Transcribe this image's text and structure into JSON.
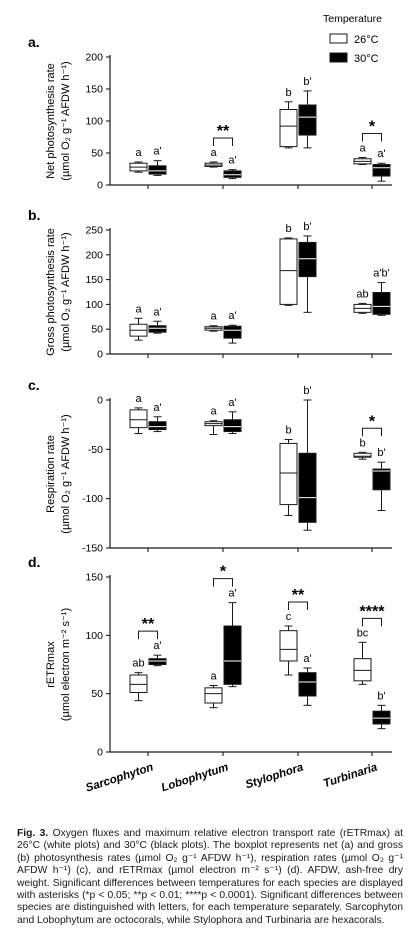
{
  "legend": {
    "title": "Temperature",
    "items": [
      {
        "label": "26°C",
        "fill": "#ffffff"
      },
      {
        "label": "30°C",
        "fill": "#000000"
      }
    ]
  },
  "colors": {
    "box_26": "#ffffff",
    "box_30": "#000000",
    "stroke": "#1a1a1a"
  },
  "categories": [
    "Sarcophyton",
    "Lobophytum",
    "Stylophora",
    "Turbinaria"
  ],
  "chart_data": [
    {
      "type": "box",
      "panel_label": "a.",
      "ylabel": [
        "Net photosynthesis rate",
        "(µmol O₂ g⁻¹ AFDW h⁻¹)"
      ],
      "ylim": [
        0,
        200
      ],
      "yticks": [
        0,
        50,
        100,
        150,
        200
      ],
      "categories": [
        "Sarcophyton",
        "Lobophytum",
        "Stylophora",
        "Turbinaria"
      ],
      "series": [
        {
          "name": "26°C",
          "boxes": [
            {
              "min": 20,
              "q1": 22,
              "median": 28,
              "q3": 34,
              "max": 36
            },
            {
              "min": 28,
              "q1": 29,
              "median": 31,
              "q3": 34,
              "max": 36
            },
            {
              "min": 58,
              "q1": 60,
              "median": 92,
              "q3": 118,
              "max": 130
            },
            {
              "min": 32,
              "q1": 33,
              "median": 37,
              "q3": 41,
              "max": 43
            }
          ]
        },
        {
          "name": "30°C",
          "boxes": [
            {
              "min": 15,
              "q1": 17,
              "median": 22,
              "q3": 30,
              "max": 38
            },
            {
              "min": 10,
              "q1": 12,
              "median": 16,
              "q3": 22,
              "max": 24
            },
            {
              "min": 58,
              "q1": 78,
              "median": 106,
              "q3": 125,
              "max": 147
            },
            {
              "min": 6,
              "q1": 14,
              "median": 27,
              "q3": 32,
              "max": 34
            }
          ]
        }
      ],
      "letters": [
        [
          "a",
          "a'"
        ],
        [
          "a",
          "a'"
        ],
        [
          "b",
          "b'"
        ],
        [
          "a",
          "a'"
        ]
      ],
      "significance": [
        {
          "category": 1,
          "text": "**"
        },
        {
          "category": 3,
          "text": "*"
        }
      ]
    },
    {
      "type": "box",
      "panel_label": "b.",
      "ylabel": [
        "Gross photosynthesis rate",
        "(µmol O₂ g⁻¹ AFDW h⁻¹)"
      ],
      "ylim": [
        0,
        250
      ],
      "yticks": [
        0,
        50,
        100,
        150,
        200,
        250
      ],
      "categories": [
        "Sarcophyton",
        "Lobophytum",
        "Stylophora",
        "Turbinaria"
      ],
      "series": [
        {
          "name": "26°C",
          "boxes": [
            {
              "min": 28,
              "q1": 36,
              "median": 48,
              "q3": 60,
              "max": 72
            },
            {
              "min": 46,
              "q1": 48,
              "median": 52,
              "q3": 55,
              "max": 57
            },
            {
              "min": 98,
              "q1": 100,
              "median": 168,
              "q3": 232,
              "max": 234
            },
            {
              "min": 82,
              "q1": 84,
              "median": 92,
              "q3": 100,
              "max": 102
            }
          ]
        },
        {
          "name": "30°C",
          "boxes": [
            {
              "min": 42,
              "q1": 44,
              "median": 52,
              "q3": 57,
              "max": 66
            },
            {
              "min": 22,
              "q1": 32,
              "median": 48,
              "q3": 56,
              "max": 58
            },
            {
              "min": 84,
              "q1": 156,
              "median": 192,
              "q3": 225,
              "max": 238
            },
            {
              "min": 78,
              "q1": 80,
              "median": 96,
              "q3": 124,
              "max": 144
            }
          ]
        }
      ],
      "letters": [
        [
          "a",
          "a'"
        ],
        [
          "a",
          "a'"
        ],
        [
          "b",
          "b'"
        ],
        [
          "ab",
          "a'b'"
        ]
      ],
      "significance": []
    },
    {
      "type": "box",
      "panel_label": "c.",
      "ylabel": [
        "Respiration rate",
        "(µmol O₂ g⁻¹ AFDW h⁻¹)"
      ],
      "ylim": [
        -150,
        0
      ],
      "yticks": [
        -150,
        -100,
        -50,
        0
      ],
      "categories": [
        "Sarcophyton",
        "Lobophytum",
        "Stylophora",
        "Turbinaria"
      ],
      "series": [
        {
          "name": "26°C",
          "boxes": [
            {
              "min": -34,
              "q1": -28,
              "median": -20,
              "q3": -10,
              "max": -8
            },
            {
              "min": -35,
              "q1": -26,
              "median": -24,
              "q3": -22,
              "max": -21
            },
            {
              "min": -117,
              "q1": -106,
              "median": -74,
              "q3": -44,
              "max": -40
            },
            {
              "min": -60,
              "q1": -58,
              "median": -57,
              "q3": -54,
              "max": -53
            }
          ]
        },
        {
          "name": "30°C",
          "boxes": [
            {
              "min": -32,
              "q1": -30,
              "median": -27,
              "q3": -22,
              "max": -17
            },
            {
              "min": -34,
              "q1": -32,
              "median": -27,
              "q3": -20,
              "max": -12
            },
            {
              "min": -132,
              "q1": -124,
              "median": -99,
              "q3": -54,
              "max": 0
            },
            {
              "min": -112,
              "q1": -91,
              "median": -72,
              "q3": -70,
              "max": -63
            }
          ]
        }
      ],
      "letters": [
        [
          "a",
          "a'"
        ],
        [
          "a",
          "a'"
        ],
        [
          "b",
          "b'"
        ],
        [
          "b",
          "b'"
        ]
      ],
      "significance": [
        {
          "category": 3,
          "text": "*"
        }
      ]
    },
    {
      "type": "box",
      "panel_label": "d.",
      "ylabel": [
        "rETRmax",
        "(µmol electron m⁻² s⁻¹)"
      ],
      "ylim": [
        0,
        150
      ],
      "yticks": [
        0,
        50,
        100,
        150
      ],
      "categories": [
        "Sarcophyton",
        "Lobophytum",
        "Stylophora",
        "Turbinaria"
      ],
      "series": [
        {
          "name": "26°C",
          "boxes": [
            {
              "min": 44,
              "q1": 51,
              "median": 58,
              "q3": 66,
              "max": 68
            },
            {
              "min": 38,
              "q1": 42,
              "median": 50,
              "q3": 55,
              "max": 57
            },
            {
              "min": 66,
              "q1": 78,
              "median": 88,
              "q3": 104,
              "max": 108
            },
            {
              "min": 58,
              "q1": 61,
              "median": 70,
              "q3": 80,
              "max": 94
            }
          ]
        },
        {
          "name": "30°C",
          "boxes": [
            {
              "min": 74,
              "q1": 75,
              "median": 78,
              "q3": 80,
              "max": 83
            },
            {
              "min": 56,
              "q1": 58,
              "median": 78,
              "q3": 108,
              "max": 128
            },
            {
              "min": 40,
              "q1": 48,
              "median": 60,
              "q3": 68,
              "max": 72
            },
            {
              "min": 20,
              "q1": 24,
              "median": 29,
              "q3": 35,
              "max": 40
            }
          ]
        }
      ],
      "letters": [
        [
          "ab",
          "a'"
        ],
        [
          "a",
          "a'"
        ],
        [
          "c",
          "a'"
        ],
        [
          "bc",
          "b'"
        ]
      ],
      "significance": [
        {
          "category": 0,
          "text": "**"
        },
        {
          "category": 1,
          "text": "*"
        },
        {
          "category": 2,
          "text": "**"
        },
        {
          "category": 3,
          "text": "****"
        }
      ]
    }
  ],
  "caption": {
    "label": "Fig. 3.",
    "text": "Oxygen fluxes and maximum relative electron transport rate (rETRmax) at 26°C (white plots) and 30°C (black plots). The boxplot represents net (a) and gross (b) photosynthesis rates (µmol O₂ g⁻¹ AFDW h⁻¹), respiration rates (µmol O₂ g⁻¹ AFDW h⁻¹) (c), and rETRmax (µmol electron m⁻² s⁻¹) (d). AFDW, ash-free dry weight. Significant differences between temperatures for each species are displayed with asterisks (*p < 0.05; **p < 0.01; ****p < 0.0001). Significant differences between species are distinguished with letters, for each temperature separately. Sarcophyton and Lobophytum are octocorals, while Stylophora and Turbinaria are hexacorals."
  }
}
